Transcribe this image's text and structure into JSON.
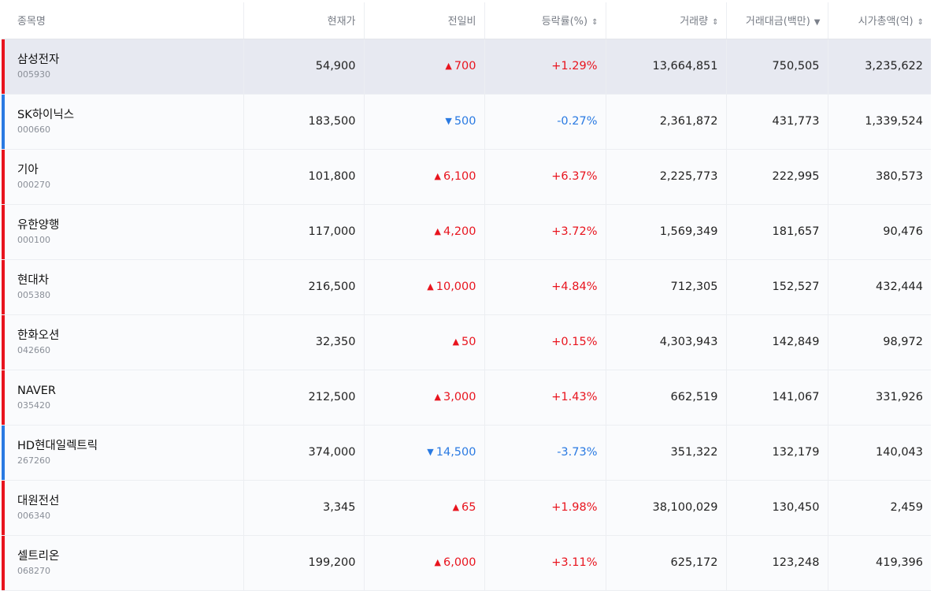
{
  "colors": {
    "up": "#e8141e",
    "down": "#2a7ae2",
    "highlight_row": "#e7e9f1"
  },
  "icons": {
    "up": "▲",
    "down": "▼",
    "sort_both": "⇕",
    "sort_desc": "▼"
  },
  "headers": [
    {
      "label": "종목명",
      "sort": null
    },
    {
      "label": "현재가",
      "sort": null
    },
    {
      "label": "전일비",
      "sort": null
    },
    {
      "label": "등락률(%)",
      "sort": "both"
    },
    {
      "label": "거래량",
      "sort": "both"
    },
    {
      "label": "거래대금(백만)",
      "sort": "desc"
    },
    {
      "label": "시가총액(억)",
      "sort": "both"
    }
  ],
  "rows": [
    {
      "name": "삼성전자",
      "code": "005930",
      "price": "54,900",
      "dir": "up",
      "change": "700",
      "rate": "+1.29%",
      "volume": "13,664,851",
      "amount": "750,505",
      "cap": "3,235,622"
    },
    {
      "name": "SK하이닉스",
      "code": "000660",
      "price": "183,500",
      "dir": "down",
      "change": "500",
      "rate": "-0.27%",
      "volume": "2,361,872",
      "amount": "431,773",
      "cap": "1,339,524"
    },
    {
      "name": "기아",
      "code": "000270",
      "price": "101,800",
      "dir": "up",
      "change": "6,100",
      "rate": "+6.37%",
      "volume": "2,225,773",
      "amount": "222,995",
      "cap": "380,573"
    },
    {
      "name": "유한양행",
      "code": "000100",
      "price": "117,000",
      "dir": "up",
      "change": "4,200",
      "rate": "+3.72%",
      "volume": "1,569,349",
      "amount": "181,657",
      "cap": "90,476"
    },
    {
      "name": "현대차",
      "code": "005380",
      "price": "216,500",
      "dir": "up",
      "change": "10,000",
      "rate": "+4.84%",
      "volume": "712,305",
      "amount": "152,527",
      "cap": "432,444"
    },
    {
      "name": "한화오션",
      "code": "042660",
      "price": "32,350",
      "dir": "up",
      "change": "50",
      "rate": "+0.15%",
      "volume": "4,303,943",
      "amount": "142,849",
      "cap": "98,972"
    },
    {
      "name": "NAVER",
      "code": "035420",
      "price": "212,500",
      "dir": "up",
      "change": "3,000",
      "rate": "+1.43%",
      "volume": "662,519",
      "amount": "141,067",
      "cap": "331,926"
    },
    {
      "name": "HD현대일렉트릭",
      "code": "267260",
      "price": "374,000",
      "dir": "down",
      "change": "14,500",
      "rate": "-3.73%",
      "volume": "351,322",
      "amount": "132,179",
      "cap": "140,043"
    },
    {
      "name": "대원전선",
      "code": "006340",
      "price": "3,345",
      "dir": "up",
      "change": "65",
      "rate": "+1.98%",
      "volume": "38,100,029",
      "amount": "130,450",
      "cap": "2,459"
    },
    {
      "name": "셀트리온",
      "code": "068270",
      "price": "199,200",
      "dir": "up",
      "change": "6,000",
      "rate": "+3.11%",
      "volume": "625,172",
      "amount": "123,248",
      "cap": "419,396"
    }
  ]
}
